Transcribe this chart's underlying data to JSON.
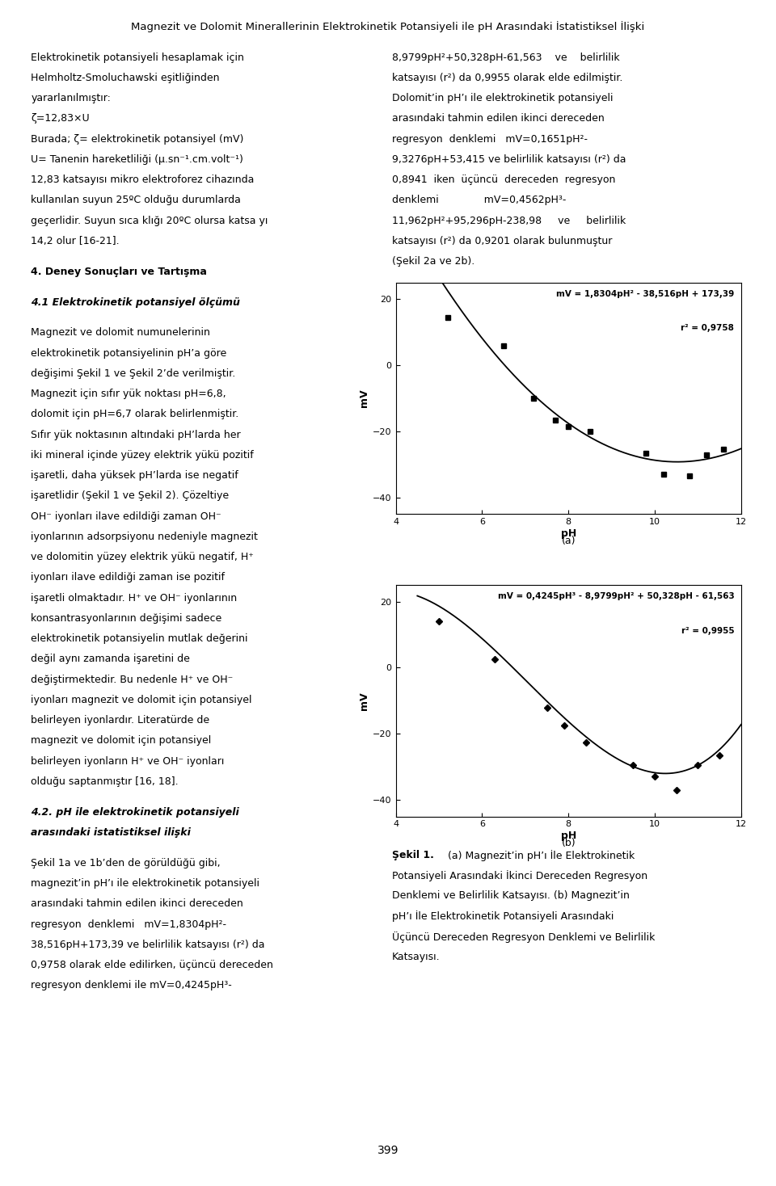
{
  "title": "Magnezit ve Dolomit Minerallerinin Elektrokinetik Potansiyeli ile pH Arasındaki İstatistiksel İlişki",
  "chart_a": {
    "xlabel": "pH",
    "ylabel": "mV",
    "xlim": [
      4,
      12
    ],
    "ylim": [
      -45,
      25
    ],
    "xticks": [
      4,
      6,
      8,
      10,
      12
    ],
    "yticks": [
      -40,
      -20,
      0,
      20
    ],
    "x_data": [
      5.2,
      6.5,
      7.2,
      7.7,
      8.0,
      8.5,
      9.8,
      10.2,
      10.8,
      11.2,
      11.6
    ],
    "y_data": [
      14.5,
      6.0,
      -10.0,
      -16.5,
      -18.5,
      -20.0,
      -26.5,
      -33.0,
      -33.5,
      -27.0,
      -25.5
    ],
    "eq_line1": "mV = 1,8304pH² - 38,516pH + 173,39",
    "eq_line2": "r² = 0,9758",
    "label": "(a)",
    "marker": "s"
  },
  "chart_b": {
    "xlabel": "pH",
    "ylabel": "mV",
    "xlim": [
      4,
      12
    ],
    "ylim": [
      -45,
      25
    ],
    "xticks": [
      4,
      6,
      8,
      10,
      12
    ],
    "yticks": [
      -40,
      -20,
      0,
      20
    ],
    "x_data": [
      5.0,
      6.3,
      7.5,
      7.9,
      8.4,
      9.5,
      10.0,
      10.5,
      11.0,
      11.5
    ],
    "y_data": [
      14.0,
      2.5,
      -12.0,
      -17.5,
      -22.5,
      -29.5,
      -33.0,
      -37.0,
      -29.5,
      -26.5
    ],
    "eq_line1": "mV = 0,4245pH³ - 8,9799pH² + 50,328pH - 61,563",
    "eq_line2": "r² = 0,9955",
    "label": "(b)",
    "marker": "D"
  },
  "right_text_lines": [
    "8,9799pH²+50,328pH-61,563    ve    belirlilik",
    "katsayısı (r²) da 0,9955 olarak elde edilmiştir.",
    "Dolomit’in pH’ı ile elektrokinetik potansiyeli",
    "arasındaki tahmin edilen ikinci dereceden",
    "regresyon  denklemi   mV=0,1651pH²-",
    "9,3276pH+53,415 ve belirlilik katsayısı (r²) da",
    "0,8941  iken  üçüncü  dereceden  regresyon",
    "denklemi              mV=0,4562pH³-",
    "11,962pH²+95,296pH-238,98     ve     belirlilik",
    "katsayısı (r²) da 0,9201 olarak bulunmuştur",
    "(Şekil 2a ve 2b)."
  ],
  "left_text_para1": [
    "Elektrokinetik potansiyeli hesaplamak için",
    "Helmholtz-Smoluchawski eşitliğinden",
    "yararlanılmıştır:",
    "ζ=12,83×U",
    "Burada; ζ= elektrokinetik potansiyel (mV)",
    "U= Tanenin hareketliliği (μ.sn⁻¹.cm.volt⁻¹)",
    "12,83 katsayısı mikro elektroforez cihazında",
    "kullanılan suyun 25ºC olduğu durumlarda",
    "geçerlidir. Suyun sıca klığı 20ºC olursa katsa yı",
    "14,2 olur [16-21]."
  ],
  "section4_title": "4. Deney Sonuçları ve Tartışma",
  "section41_title": "4.1 Elektrokinetik potansiyel ölçümü",
  "left_text_para2": [
    "Magnezit ve dolomit numunelerinin",
    "elektrokinetik potansiyelinin pH’a göre",
    "değişimi Şekil 1 ve Şekil 2’de verilmiştir.",
    "Magnezit için sıfır yük noktası pH=6,8,",
    "dolomit için pH=6,7 olarak belirlenmiştir.",
    "Sıfır yük noktasının altındaki pH’larda her",
    "iki mineral içinde yüzey elektrik yükü pozitif",
    "işaretli, daha yüksek pH’larda ise negatif",
    "işaretlidir (Şekil 1 ve Şekil 2). Çözeltiye",
    "OH⁻ iyonları ilave edildiği zaman OH⁻",
    "iyonlarının adsorpsiyonu nedeniyle magnezit",
    "ve dolomitin yüzey elektrik yükü negatif, H⁺",
    "iyonları ilave edildiği zaman ise pozitif",
    "işaretli olmaktadır. H⁺ ve OH⁻ iyonlarının",
    "konsantrasyonlarının değişimi sadece",
    "elektrokinetik potansiyelin mutlak değerini",
    "değil aynı zamanda işaretini de",
    "değiştirmektedir. Bu nedenle H⁺ ve OH⁻",
    "iyonları magnezit ve dolomit için potansiyel",
    "belirleyen iyonlardır. Literatürde de",
    "magnezit ve dolomit için potansiyel",
    "belirleyen iyonların H⁺ ve OH⁻ iyonları",
    "olduğu saptanmıştır [16, 18]."
  ],
  "section42_title": "4.2. pH ile elektrokinetik potansiyeli",
  "section42_title2": "arasındaki istatistiksel ilişki",
  "left_text_para3": [
    "Şekil 1a ve 1b’den de görüldüğü gibi,",
    "magnezit’in pH’ı ile elektrokinetik potansiyeli",
    "arasındaki tahmin edilen ikinci dereceden",
    "regresyon  denklemi   mV=1,8304pH²-",
    "38,516pH+173,39 ve belirlilik katsayısı (r²) da",
    "0,9758 olarak elde edilirken, üçüncü dereceden",
    "regresyon denklemi ile mV=0,4245pH³-"
  ],
  "caption_bold": "Şekil 1.",
  "caption_normal": " (a) Magnezit’in pH’ı İle Elektrokinetik Potansiyeli Arasındaki İkinci Dereceden Regresyon Denklemi ve Belirlilik Katsayısı. (b) Magnezit’in pH’ı İle Elektrokinetik Potansiyeli Arasındaki Üçüncü Dereceden Regresyon Denklemi ve Belirlilik Katsayısı.",
  "caption_lines": [
    "Şekil 1. (a) Magnezit’in pH’ı İle Elektrokinetik",
    "Potansiyeli Arasındaki İkinci Dereceden Regresyon",
    "Denklemi ve Belirlilik Katsayısı. (b) Magnezit’in",
    "pH’ı İle Elektrokinetik Potansiyeli Arasındaki",
    "Üçüncü Dereceden Regresyon Denklemi ve Belirlilik",
    "Katsayısı."
  ],
  "page_number": "399",
  "bg_color": "#ffffff",
  "text_color": "#000000"
}
